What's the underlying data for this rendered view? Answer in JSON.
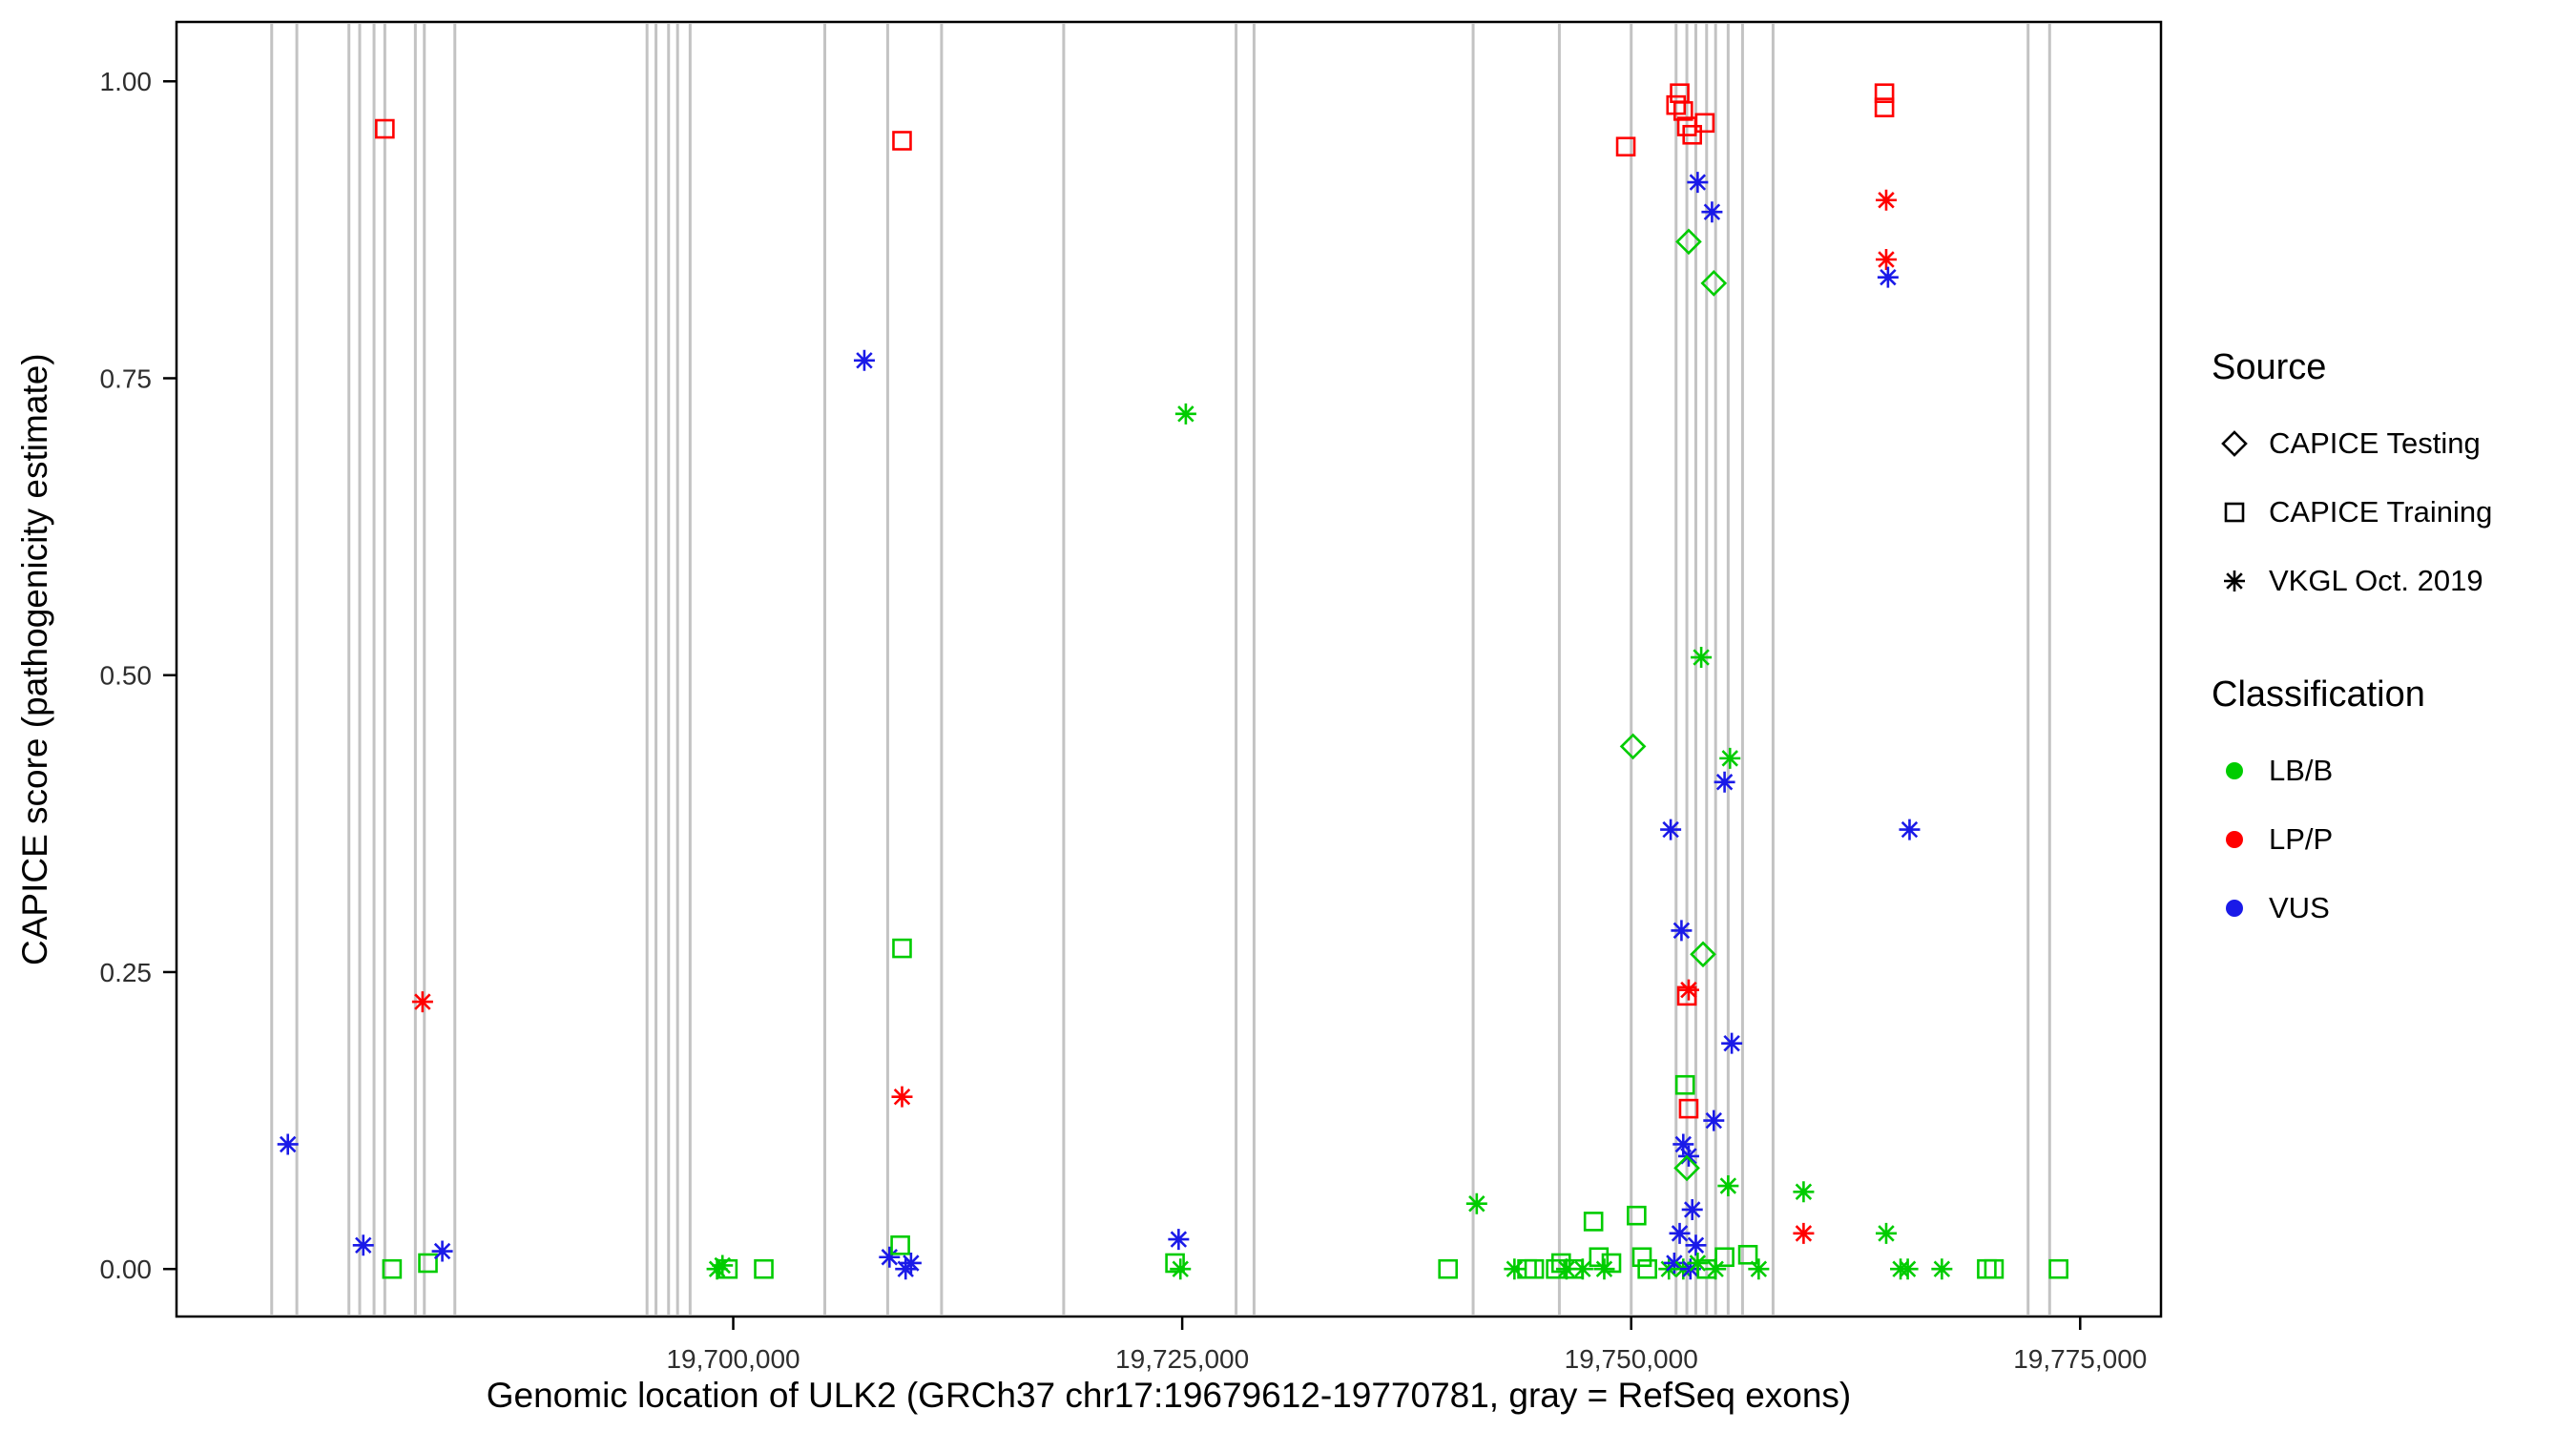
{
  "chart_data": {
    "type": "scatter",
    "title": "",
    "xlabel": "Genomic location of ULK2 (GRCh37 chr17:19679612-19770781, gray = RefSeq exons)",
    "ylabel": "CAPICE score (pathogenicity estimate)",
    "xlim": [
      19669000,
      19779500
    ],
    "ylim": [
      -0.04,
      1.05
    ],
    "x_ticks": [
      19700000,
      19725000,
      19750000,
      19775000
    ],
    "x_tick_labels": [
      "19,700,000",
      "19,725,000",
      "19,750,000",
      "19,775,000"
    ],
    "y_ticks": [
      0.0,
      0.25,
      0.5,
      0.75,
      1.0
    ],
    "y_tick_labels": [
      "0.00",
      "0.25",
      "0.50",
      "0.75",
      "1.00"
    ],
    "grid": false,
    "legend_position": "right",
    "exon_color": "#c3c3c3",
    "class_colors": {
      "LB/B": "#00cc00",
      "LP/P": "#ff0000",
      "VUS": "#1a1ae8"
    },
    "exons": [
      19674300,
      19675700,
      19678600,
      19679200,
      19680000,
      19680600,
      19682300,
      19682800,
      19684500,
      19695200,
      19695700,
      19696400,
      19696900,
      19697600,
      19705100,
      19708600,
      19711600,
      19718400,
      19728000,
      19729000,
      19741200,
      19746000,
      19750000,
      19752500,
      19753100,
      19753600,
      19754200,
      19754700,
      19755400,
      19756200,
      19757900,
      19772100,
      19773300
    ],
    "legend": {
      "source": {
        "title": "Source",
        "items": [
          {
            "label": "CAPICE Testing",
            "shape": "diamond"
          },
          {
            "label": "CAPICE Training",
            "shape": "square"
          },
          {
            "label": "VKGL Oct. 2019",
            "shape": "asterisk"
          }
        ]
      },
      "classification": {
        "title": "Classification",
        "items": [
          {
            "label": "LB/B",
            "color": "#00cc00"
          },
          {
            "label": "LP/P",
            "color": "#ff0000"
          },
          {
            "label": "VUS",
            "color": "#1a1ae8"
          }
        ]
      }
    },
    "points": [
      [
        19675200,
        0.105,
        "VUS",
        "vkgl"
      ],
      [
        19679400,
        0.02,
        "VUS",
        "vkgl"
      ],
      [
        19680600,
        0.96,
        "LP/P",
        "training"
      ],
      [
        19681000,
        0.0,
        "LB/B",
        "training"
      ],
      [
        19682700,
        0.225,
        "LP/P",
        "vkgl"
      ],
      [
        19683000,
        0.005,
        "LB/B",
        "training"
      ],
      [
        19683800,
        0.015,
        "VUS",
        "vkgl"
      ],
      [
        19699100,
        0.0,
        "LB/B",
        "vkgl"
      ],
      [
        19699400,
        0.003,
        "LB/B",
        "vkgl"
      ],
      [
        19699700,
        0.0,
        "LB/B",
        "training"
      ],
      [
        19701700,
        0.0,
        "LB/B",
        "training"
      ],
      [
        19707300,
        0.765,
        "VUS",
        "vkgl"
      ],
      [
        19709400,
        0.95,
        "LP/P",
        "training"
      ],
      [
        19709400,
        0.27,
        "LB/B",
        "training"
      ],
      [
        19709400,
        0.145,
        "LP/P",
        "vkgl"
      ],
      [
        19708700,
        0.01,
        "VUS",
        "vkgl"
      ],
      [
        19709300,
        0.02,
        "LB/B",
        "training"
      ],
      [
        19709600,
        0.0,
        "VUS",
        "vkgl"
      ],
      [
        19709900,
        0.005,
        "VUS",
        "vkgl"
      ],
      [
        19725200,
        0.72,
        "LB/B",
        "vkgl"
      ],
      [
        19724800,
        0.025,
        "VUS",
        "vkgl"
      ],
      [
        19724600,
        0.005,
        "LB/B",
        "training"
      ],
      [
        19724900,
        0.0,
        "LB/B",
        "vkgl"
      ],
      [
        19741400,
        0.055,
        "LB/B",
        "vkgl"
      ],
      [
        19739800,
        0.0,
        "LB/B",
        "training"
      ],
      [
        19743500,
        0.0,
        "LB/B",
        "vkgl"
      ],
      [
        19744200,
        0.0,
        "LB/B",
        "training"
      ],
      [
        19744600,
        0.0,
        "LB/B",
        "training"
      ],
      [
        19745800,
        0.0,
        "LB/B",
        "training"
      ],
      [
        19746100,
        0.005,
        "LB/B",
        "training"
      ],
      [
        19746400,
        0.0,
        "LB/B",
        "vkgl"
      ],
      [
        19746800,
        0.0,
        "LB/B",
        "training"
      ],
      [
        19747300,
        0.0,
        "LB/B",
        "vkgl"
      ],
      [
        19747900,
        0.04,
        "LB/B",
        "training"
      ],
      [
        19748200,
        0.01,
        "LB/B",
        "training"
      ],
      [
        19748500,
        0.0,
        "LB/B",
        "vkgl"
      ],
      [
        19748900,
        0.005,
        "LB/B",
        "training"
      ],
      [
        19749700,
        0.945,
        "LP/P",
        "training"
      ],
      [
        19750100,
        0.44,
        "LB/B",
        "testing"
      ],
      [
        19750300,
        0.045,
        "LB/B",
        "training"
      ],
      [
        19750600,
        0.01,
        "LB/B",
        "training"
      ],
      [
        19750900,
        0.0,
        "LB/B",
        "training"
      ],
      [
        19752500,
        0.98,
        "LP/P",
        "training"
      ],
      [
        19752700,
        0.99,
        "LP/P",
        "training"
      ],
      [
        19752900,
        0.975,
        "LP/P",
        "training"
      ],
      [
        19753100,
        0.962,
        "LP/P",
        "training"
      ],
      [
        19753400,
        0.955,
        "LP/P",
        "training"
      ],
      [
        19754100,
        0.965,
        "LP/P",
        "training"
      ],
      [
        19753700,
        0.915,
        "VUS",
        "vkgl"
      ],
      [
        19754500,
        0.89,
        "VUS",
        "vkgl"
      ],
      [
        19753200,
        0.865,
        "LB/B",
        "testing"
      ],
      [
        19754600,
        0.83,
        "LB/B",
        "testing"
      ],
      [
        19753900,
        0.515,
        "LB/B",
        "vkgl"
      ],
      [
        19755500,
        0.43,
        "LB/B",
        "vkgl"
      ],
      [
        19755200,
        0.41,
        "VUS",
        "vkgl"
      ],
      [
        19752200,
        0.37,
        "VUS",
        "vkgl"
      ],
      [
        19752800,
        0.285,
        "VUS",
        "vkgl"
      ],
      [
        19754000,
        0.265,
        "LB/B",
        "testing"
      ],
      [
        19753200,
        0.235,
        "LP/P",
        "vkgl"
      ],
      [
        19753100,
        0.23,
        "LP/P",
        "training"
      ],
      [
        19755600,
        0.19,
        "VUS",
        "vkgl"
      ],
      [
        19753000,
        0.155,
        "LB/B",
        "training"
      ],
      [
        19753200,
        0.135,
        "LP/P",
        "training"
      ],
      [
        19754600,
        0.125,
        "VUS",
        "vkgl"
      ],
      [
        19752900,
        0.105,
        "VUS",
        "vkgl"
      ],
      [
        19753200,
        0.095,
        "VUS",
        "vkgl"
      ],
      [
        19753100,
        0.085,
        "LB/B",
        "testing"
      ],
      [
        19755400,
        0.07,
        "LB/B",
        "vkgl"
      ],
      [
        19759600,
        0.065,
        "LB/B",
        "vkgl"
      ],
      [
        19753400,
        0.05,
        "VUS",
        "vkgl"
      ],
      [
        19752700,
        0.03,
        "VUS",
        "vkgl"
      ],
      [
        19753600,
        0.02,
        "VUS",
        "vkgl"
      ],
      [
        19752100,
        0.0,
        "LB/B",
        "vkgl"
      ],
      [
        19752400,
        0.005,
        "VUS",
        "vkgl"
      ],
      [
        19752900,
        0.0,
        "LB/B",
        "vkgl"
      ],
      [
        19753300,
        0.0,
        "VUS",
        "vkgl"
      ],
      [
        19753700,
        0.005,
        "LB/B",
        "vkgl"
      ],
      [
        19754200,
        0.0,
        "LB/B",
        "training"
      ],
      [
        19754700,
        0.0,
        "LB/B",
        "vkgl"
      ],
      [
        19755200,
        0.01,
        "LB/B",
        "training"
      ],
      [
        19756500,
        0.012,
        "LB/B",
        "training"
      ],
      [
        19757100,
        0.0,
        "LB/B",
        "vkgl"
      ],
      [
        19759600,
        0.03,
        "LP/P",
        "vkgl"
      ],
      [
        19764100,
        0.99,
        "LP/P",
        "training"
      ],
      [
        19764100,
        0.978,
        "LP/P",
        "training"
      ],
      [
        19764200,
        0.9,
        "LP/P",
        "vkgl"
      ],
      [
        19764200,
        0.85,
        "LP/P",
        "vkgl"
      ],
      [
        19764300,
        0.835,
        "VUS",
        "vkgl"
      ],
      [
        19765500,
        0.37,
        "VUS",
        "vkgl"
      ],
      [
        19764200,
        0.03,
        "LB/B",
        "vkgl"
      ],
      [
        19765000,
        0.0,
        "LB/B",
        "vkgl"
      ],
      [
        19765400,
        0.0,
        "LB/B",
        "vkgl"
      ],
      [
        19767300,
        0.0,
        "LB/B",
        "vkgl"
      ],
      [
        19769800,
        0.0,
        "LB/B",
        "training"
      ],
      [
        19770200,
        0.0,
        "LB/B",
        "training"
      ],
      [
        19773800,
        0.0,
        "LB/B",
        "training"
      ]
    ]
  }
}
